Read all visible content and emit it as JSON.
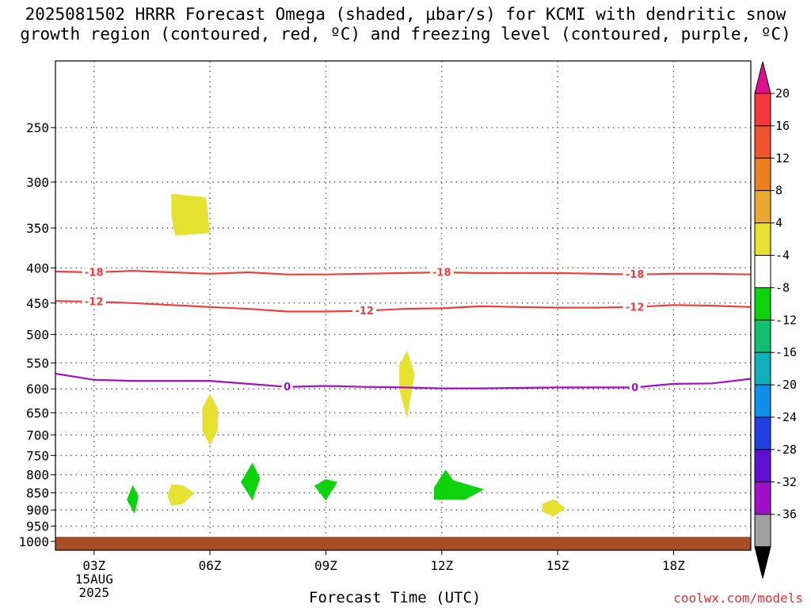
{
  "title_line1": "2025081502 HRRR Forecast Omega (shaded, μbar/s) for KCMI with dendritic snow",
  "title_line2": "growth region (contoured, red, ºC) and freezing level (contoured, purple, ºC)",
  "xlabel": "Forecast Time (UTC)",
  "credit": "coolwx.com/models",
  "chart_data": {
    "type": "heatmap",
    "title": "2025081502 HRRR Forecast Omega (shaded, μbar/s) for KCMI with dendritic snow growth region (contoured, red, ºC) and freezing level (contoured, purple, ºC)",
    "xlabel": "Forecast Time (UTC)",
    "ylabel": "",
    "x_range_hours": [
      2,
      20
    ],
    "y_range_hpa": [
      200,
      1030
    ],
    "y_scale": "log-pressure, inverted",
    "grid": true,
    "x_ticks": [
      {
        "hour": 3,
        "lines": [
          "03Z",
          "15AUG",
          "2025"
        ]
      },
      {
        "hour": 6,
        "lines": [
          "06Z"
        ]
      },
      {
        "hour": 9,
        "lines": [
          "09Z"
        ]
      },
      {
        "hour": 12,
        "lines": [
          "12Z"
        ]
      },
      {
        "hour": 15,
        "lines": [
          "15Z"
        ]
      },
      {
        "hour": 18,
        "lines": [
          "18Z"
        ]
      }
    ],
    "y_ticks": [
      250,
      300,
      350,
      400,
      450,
      500,
      550,
      600,
      650,
      700,
      750,
      800,
      850,
      900,
      950,
      1000
    ],
    "contours": [
      {
        "name": "-18",
        "color": "#f23c3c",
        "points": [
          [
            2,
            405
          ],
          [
            3,
            406
          ],
          [
            4,
            404
          ],
          [
            5,
            406
          ],
          [
            6,
            408
          ],
          [
            7,
            406
          ],
          [
            8,
            409
          ],
          [
            9,
            409
          ],
          [
            10,
            408
          ],
          [
            11,
            407
          ],
          [
            12,
            406
          ],
          [
            13,
            407
          ],
          [
            14,
            407
          ],
          [
            15,
            407
          ],
          [
            16,
            408
          ],
          [
            17,
            409
          ],
          [
            18,
            408
          ],
          [
            19,
            408
          ],
          [
            20,
            409
          ]
        ],
        "labels": [
          3,
          12,
          17
        ]
      },
      {
        "name": "-12",
        "color": "#f23c3c",
        "points": [
          [
            2,
            447
          ],
          [
            3,
            448
          ],
          [
            4,
            450
          ],
          [
            5,
            453
          ],
          [
            6,
            456
          ],
          [
            7,
            459
          ],
          [
            8,
            463
          ],
          [
            9,
            463
          ],
          [
            10,
            462
          ],
          [
            11,
            459
          ],
          [
            12,
            458
          ],
          [
            13,
            455
          ],
          [
            14,
            456
          ],
          [
            15,
            457
          ],
          [
            16,
            457
          ],
          [
            17,
            456
          ],
          [
            18,
            453
          ],
          [
            19,
            454
          ],
          [
            20,
            456
          ]
        ],
        "labels": [
          3,
          10,
          17
        ]
      },
      {
        "name": "0",
        "color": "#a010c8",
        "points": [
          [
            2,
            570
          ],
          [
            3,
            582
          ],
          [
            4,
            584
          ],
          [
            5,
            584
          ],
          [
            6,
            584
          ],
          [
            7,
            590
          ],
          [
            8,
            596
          ],
          [
            9,
            594
          ],
          [
            10,
            596
          ],
          [
            11,
            597
          ],
          [
            12,
            599
          ],
          [
            13,
            599
          ],
          [
            14,
            598
          ],
          [
            15,
            597
          ],
          [
            16,
            597
          ],
          [
            17,
            597
          ],
          [
            18,
            590
          ],
          [
            19,
            589
          ],
          [
            20,
            580
          ]
        ],
        "labels": [
          8,
          17
        ]
      }
    ],
    "shaded_regions": [
      {
        "value": 6,
        "color": "#e6e031",
        "points": [
          [
            5.0,
            312
          ],
          [
            5.9,
            316
          ],
          [
            6.0,
            356
          ],
          [
            5.1,
            359
          ],
          [
            5.0,
            335
          ]
        ]
      },
      {
        "value": 6,
        "color": "#e6e031",
        "points": [
          [
            11.1,
            528
          ],
          [
            11.3,
            570
          ],
          [
            11.1,
            662
          ],
          [
            10.9,
            600
          ],
          [
            10.9,
            555
          ]
        ]
      },
      {
        "value": 6,
        "color": "#e6e031",
        "points": [
          [
            6.0,
            610
          ],
          [
            6.2,
            640
          ],
          [
            6.2,
            690
          ],
          [
            6.0,
            725
          ],
          [
            5.8,
            690
          ],
          [
            5.8,
            640
          ]
        ]
      },
      {
        "value": 6,
        "color": "#e6e031",
        "points": [
          [
            5.0,
            826
          ],
          [
            5.3,
            829
          ],
          [
            5.6,
            850
          ],
          [
            5.3,
            882
          ],
          [
            5.0,
            888
          ],
          [
            4.9,
            860
          ]
        ]
      },
      {
        "value": 6,
        "color": "#e6e031",
        "points": [
          [
            14.6,
            882
          ],
          [
            14.9,
            868
          ],
          [
            15.2,
            895
          ],
          [
            14.9,
            920
          ],
          [
            14.6,
            905
          ]
        ]
      },
      {
        "value": -6,
        "color": "#0cd30c",
        "points": [
          [
            4.0,
            828
          ],
          [
            4.15,
            860
          ],
          [
            4.05,
            912
          ],
          [
            3.85,
            870
          ]
        ]
      },
      {
        "value": -6,
        "color": "#0cd30c",
        "points": [
          [
            7.1,
            768
          ],
          [
            7.3,
            810
          ],
          [
            7.1,
            872
          ],
          [
            6.8,
            820
          ]
        ]
      },
      {
        "value": -6,
        "color": "#0cd30c",
        "points": [
          [
            9.0,
            812
          ],
          [
            9.3,
            820
          ],
          [
            9.0,
            872
          ],
          [
            8.7,
            830
          ]
        ]
      },
      {
        "value": -6,
        "color": "#0cd30c",
        "points": [
          [
            12.1,
            786
          ],
          [
            12.3,
            815
          ],
          [
            13.1,
            840
          ],
          [
            12.6,
            870
          ],
          [
            11.8,
            870
          ],
          [
            11.8,
            835
          ]
        ]
      }
    ],
    "ground": {
      "color": "#a64e26",
      "from_hpa": 985
    },
    "colorbar": {
      "labels": [
        "20",
        "16",
        "12",
        "8",
        "4",
        "-4",
        "-8",
        "-12",
        "-16",
        "-20",
        "-24",
        "-28",
        "-32",
        "-36"
      ],
      "colors": [
        "#f5383c",
        "#f0542c",
        "#ec8020",
        "#e8a832",
        "#e6e031",
        "#ffffff",
        "#0cd30c",
        "#10c070",
        "#10b0b8",
        "#0e90e8",
        "#2040e0",
        "#6010d0",
        "#a010c8",
        "#a0a0a0"
      ],
      "top_color": "#e0108c",
      "bottom_color": "#000000"
    }
  }
}
